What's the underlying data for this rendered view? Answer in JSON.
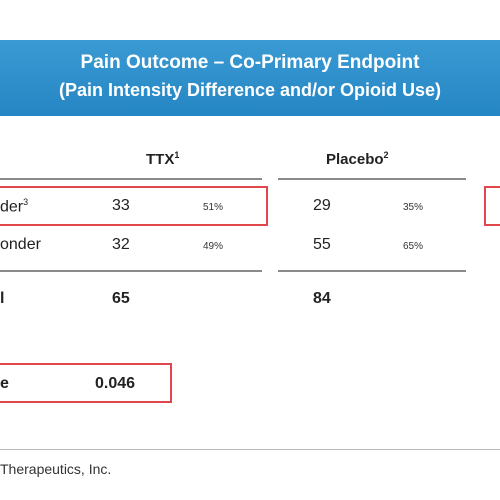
{
  "banner": {
    "title": "Pain Outcome – Co-Primary Endpoint",
    "subtitle": "(Pain Intensity Difference and/or Opioid Use)"
  },
  "columns": {
    "ttx": {
      "label": "TTX",
      "note": "1"
    },
    "placebo": {
      "label": "Placebo",
      "note": "2"
    }
  },
  "rows": [
    {
      "label": "der",
      "note": "3",
      "ttx_n": "33",
      "ttx_pct": "51%",
      "placebo_n": "29",
      "placebo_pct": "35%"
    },
    {
      "label": "onder",
      "note": "",
      "ttx_n": "32",
      "ttx_pct": "49%",
      "placebo_n": "55",
      "placebo_pct": "65%"
    }
  ],
  "total": {
    "label": "l",
    "ttx": "65",
    "placebo": "84"
  },
  "pvalue": {
    "label": "e",
    "value": "0.046"
  },
  "footer": {
    "text": "Therapeutics, Inc."
  },
  "colors": {
    "banner": "#2586c4",
    "highlight": "#e0474c"
  }
}
